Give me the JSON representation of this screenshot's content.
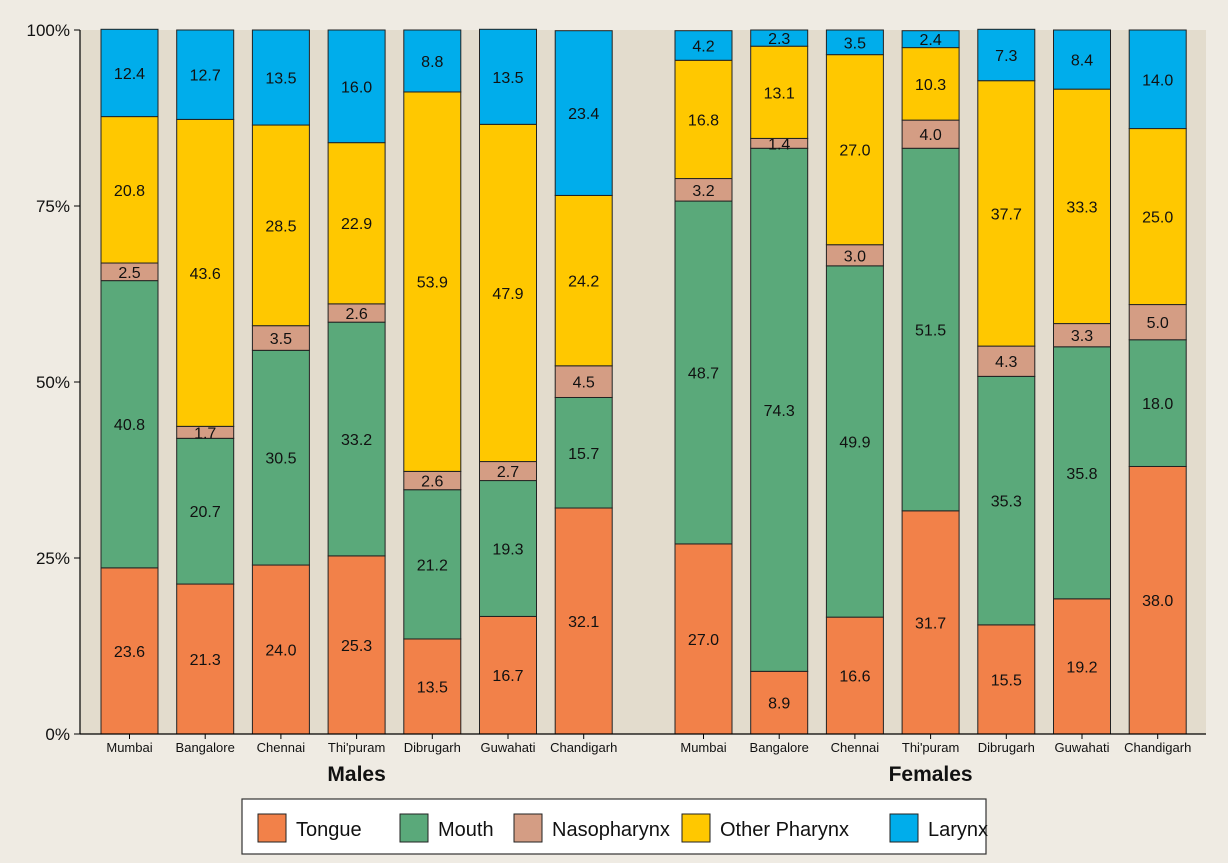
{
  "chart_data": {
    "type": "bar",
    "stacked": true,
    "percent": true,
    "ylim": [
      0,
      100
    ],
    "yticks": [
      "0%",
      "25%",
      "50%",
      "75%",
      "100%"
    ],
    "ytick_values": [
      0,
      25,
      50,
      75,
      100
    ],
    "grid": false,
    "legend_position": "bottom",
    "colors": {
      "panel_bg": "#e3dccd",
      "page_bg": "#efebe3",
      "Tongue": "#f28149",
      "Mouth": "#5aa97a",
      "Nasopharynx": "#d49d84",
      "Other Pharynx": "#ffc800",
      "Larynx": "#00adeb"
    },
    "series_names": [
      "Tongue",
      "Mouth",
      "Nasopharynx",
      "Other Pharynx",
      "Larynx"
    ],
    "groups": [
      {
        "label": "Males",
        "categories": [
          "Mumbai",
          "Bangalore",
          "Chennai",
          "Thi'puram",
          "Dibrugarh",
          "Guwahati",
          "Chandigarh"
        ],
        "series": [
          {
            "name": "Tongue",
            "values": [
              23.6,
              21.3,
              24.0,
              25.3,
              13.5,
              16.7,
              32.1
            ],
            "labels": [
              "23.6",
              "21.3",
              "24.0",
              "25.3",
              "13.5",
              "16.7",
              "32.1"
            ]
          },
          {
            "name": "Mouth",
            "values": [
              40.8,
              20.7,
              30.5,
              33.2,
              21.2,
              19.3,
              15.7
            ],
            "labels": [
              "40.8",
              "20.7",
              "30.5",
              "33.2",
              "21.2",
              "19.3",
              "15.7"
            ]
          },
          {
            "name": "Nasopharynx",
            "values": [
              2.5,
              1.7,
              3.5,
              2.6,
              2.6,
              2.7,
              4.5
            ],
            "labels": [
              "2.5",
              "1.7",
              "3.5",
              "2.6",
              "2.6",
              "2.7",
              "4.5"
            ]
          },
          {
            "name": "Other Pharynx",
            "values": [
              20.8,
              43.6,
              28.5,
              22.9,
              53.9,
              47.9,
              24.2
            ],
            "labels": [
              "20.8",
              "43.6",
              "28.5",
              "22.9",
              "53.9",
              "47.9",
              "24.2"
            ]
          },
          {
            "name": "Larynx",
            "values": [
              12.4,
              12.7,
              13.5,
              16.0,
              8.8,
              13.5,
              23.4
            ],
            "labels": [
              "12.4",
              "12.7",
              "13.5",
              "16.0",
              "8.8",
              "13.5",
              "23.4"
            ]
          }
        ]
      },
      {
        "label": "Females",
        "categories": [
          "Mumbai",
          "Bangalore",
          "Chennai",
          "Thi'puram",
          "Dibrugarh",
          "Guwahati",
          "Chandigarh"
        ],
        "series": [
          {
            "name": "Tongue",
            "values": [
              27.0,
              8.9,
              16.6,
              31.7,
              15.5,
              19.2,
              38.0
            ],
            "labels": [
              "27.0",
              "8.9",
              "16.6",
              "31.7",
              "15.5",
              "19.2",
              "38.0"
            ]
          },
          {
            "name": "Mouth",
            "values": [
              48.7,
              74.3,
              49.9,
              51.5,
              35.3,
              35.8,
              18.0
            ],
            "labels": [
              "48.7",
              "74.3",
              "49.9",
              "51.5",
              "35.3",
              "35.8",
              "18.0"
            ]
          },
          {
            "name": "Nasopharynx",
            "values": [
              3.2,
              1.4,
              3.0,
              4.0,
              4.3,
              3.3,
              5.0
            ],
            "labels": [
              "3.2",
              "1.4",
              "3.0",
              "4.0",
              "4.3",
              "3.3",
              "5.0"
            ]
          },
          {
            "name": "Other Pharynx",
            "values": [
              16.8,
              13.1,
              27.0,
              10.3,
              37.7,
              33.3,
              25.0
            ],
            "labels": [
              "16.8",
              "13.1",
              "27.0",
              "10.3",
              "37.7",
              "33.3",
              "25.0"
            ]
          },
          {
            "name": "Larynx",
            "values": [
              4.2,
              2.3,
              3.5,
              2.4,
              7.3,
              8.4,
              14.0
            ],
            "labels": [
              "4.2",
              "2.3",
              "3.5",
              "2.4",
              "7.3",
              "8.4",
              "14.0"
            ]
          }
        ]
      }
    ]
  }
}
